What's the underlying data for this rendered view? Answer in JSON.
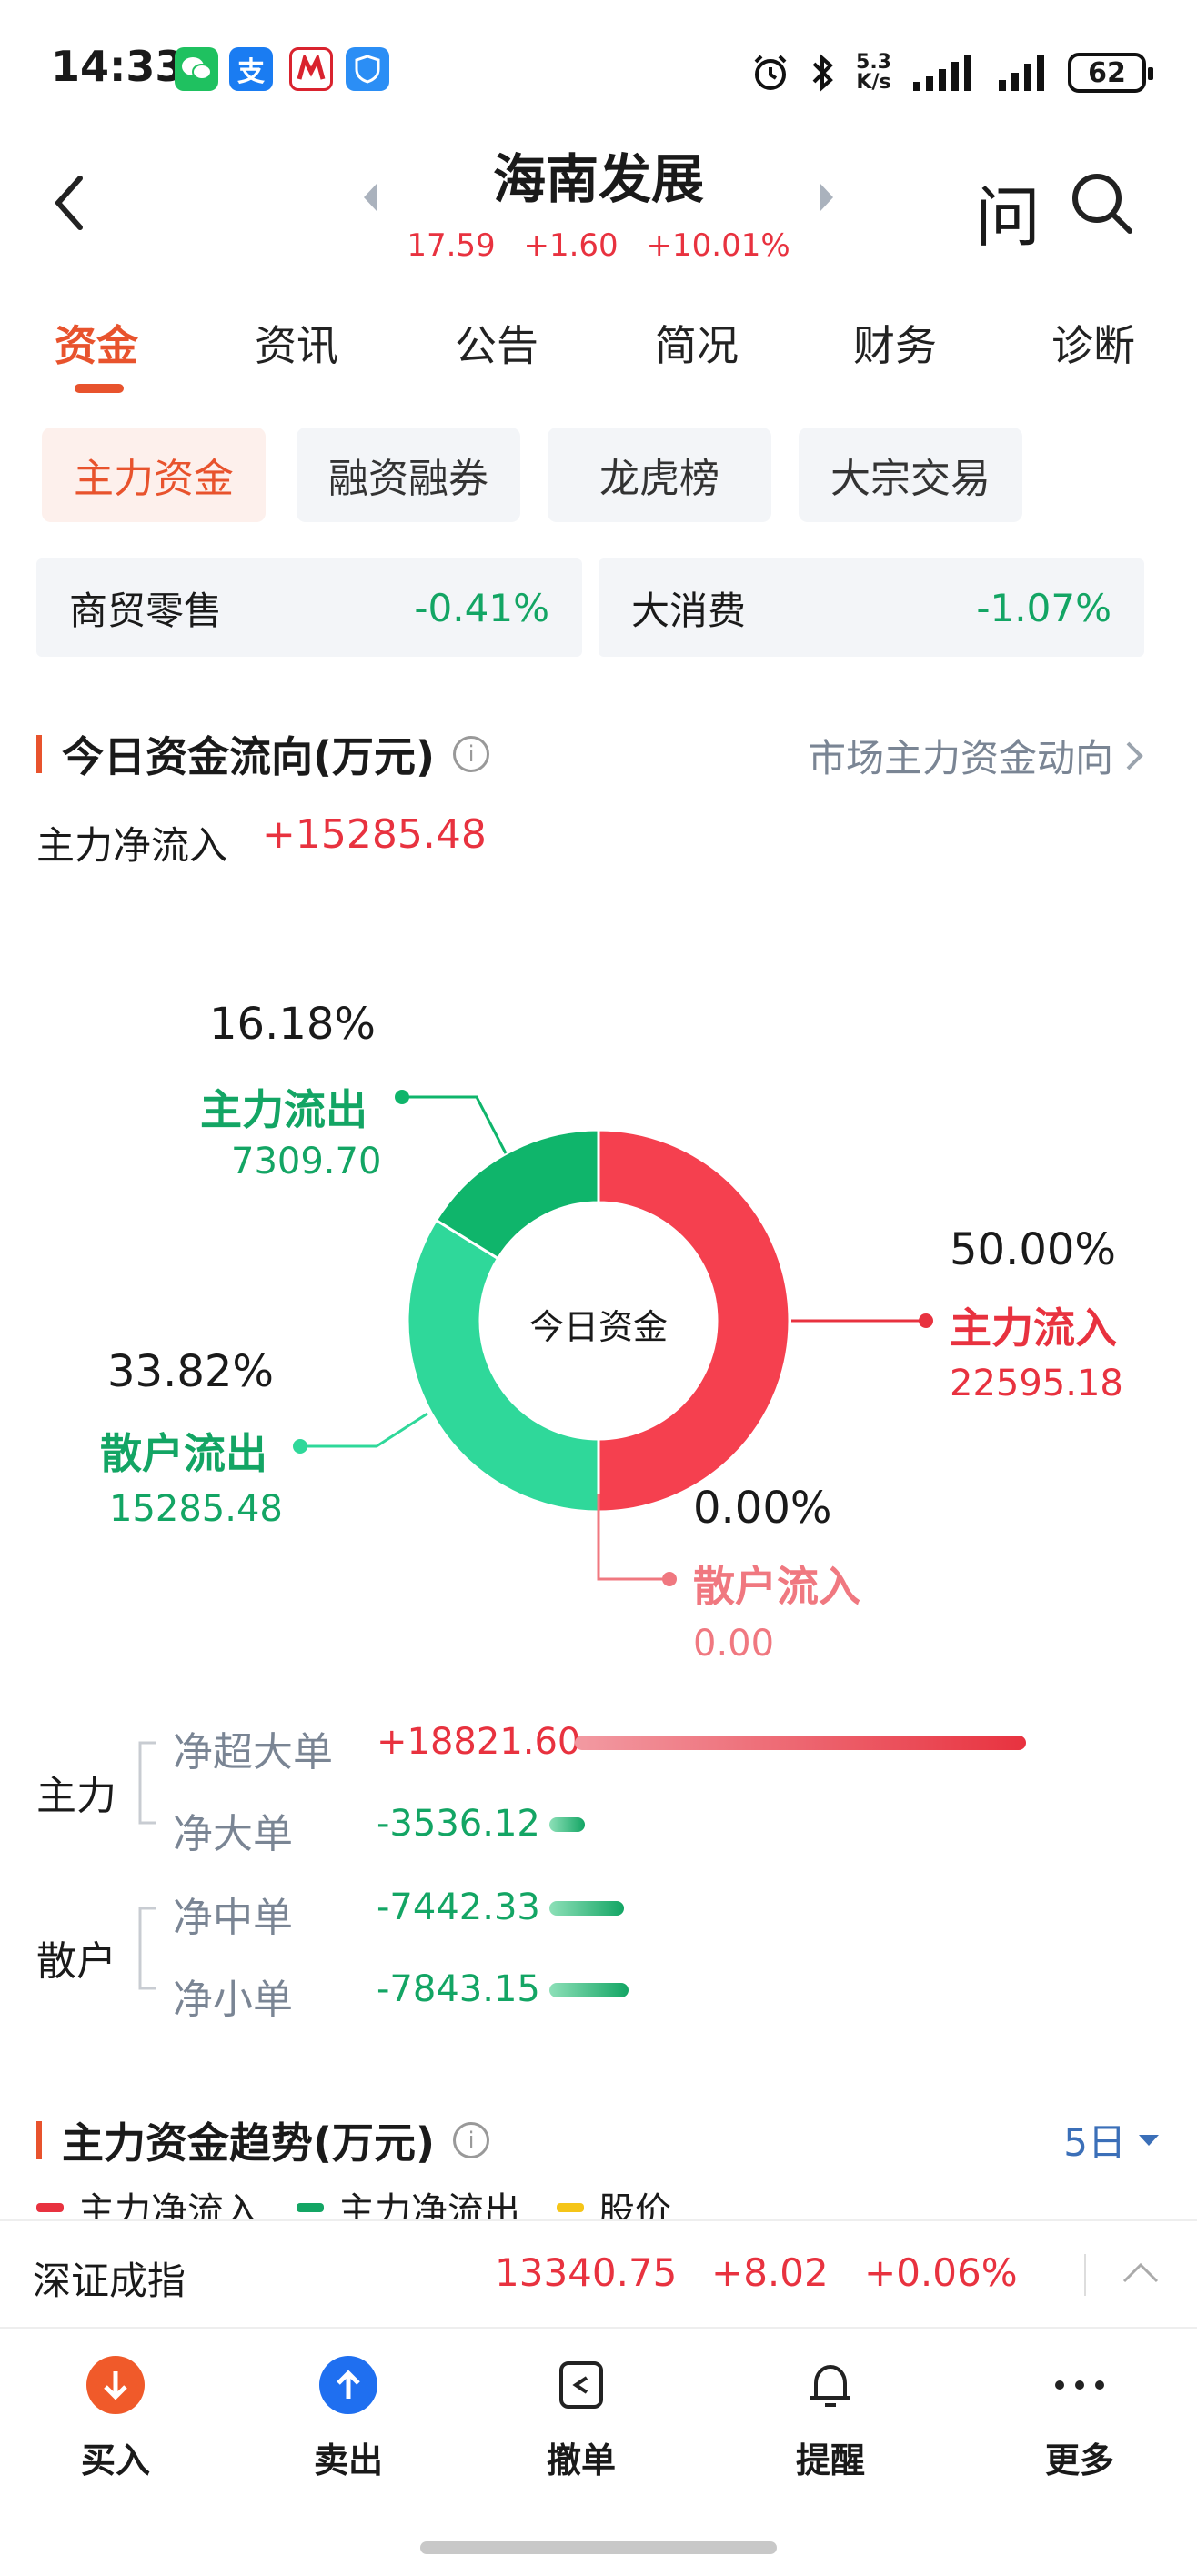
{
  "status": {
    "time": "14:33",
    "net_speed_value": "5.3",
    "net_speed_unit": "K/s",
    "battery": "62",
    "apps": [
      {
        "icon": "wechat-icon",
        "color": "#1fc160"
      },
      {
        "icon": "alipay-icon",
        "color": "#1a7cf2",
        "glyph": "支"
      },
      {
        "icon": "cmb-bank-icon",
        "color": "#d9232e"
      },
      {
        "icon": "shield-app-icon",
        "color": "#2b8ef5"
      }
    ]
  },
  "header": {
    "title": "海南发展",
    "price": "17.59",
    "change": "+1.60",
    "change_pct": "+10.01%",
    "ask_label": "问"
  },
  "tabs": [
    "资金",
    "资讯",
    "公告",
    "简况",
    "财务",
    "诊断"
  ],
  "subtabs": [
    "主力资金",
    "融资融券",
    "龙虎榜",
    "大宗交易"
  ],
  "sectors": [
    {
      "name": "商贸零售",
      "change": "-0.41%"
    },
    {
      "name": "大消费",
      "change": "-1.07%"
    }
  ],
  "flow": {
    "title": "今日资金流向(万元)",
    "market_link": "市场主力资金动向",
    "net_label": "主力净流入",
    "net_value": "+15285.48",
    "center_label": "今日资金"
  },
  "chart_data": {
    "type": "pie",
    "title": "今日资金",
    "slices": [
      {
        "name": "主力流入",
        "pct": "50.00%",
        "value": 22595.18,
        "value_text": "22595.18",
        "color": "#f5404f"
      },
      {
        "name": "散户流入",
        "pct": "0.00%",
        "value": 0.0,
        "value_text": "0.00",
        "color": "#f07880"
      },
      {
        "name": "散户流出",
        "pct": "33.82%",
        "value": 15285.48,
        "value_text": "15285.48",
        "color": "#2fd89a"
      },
      {
        "name": "主力流出",
        "pct": "16.18%",
        "value": 7309.7,
        "value_text": "7309.70",
        "color": "#0fb56b"
      }
    ]
  },
  "breakdown": {
    "groups": [
      {
        "label": "主力",
        "rows": [
          {
            "name": "净超大单",
            "value": "+18821.60",
            "num": 18821.6
          },
          {
            "name": "净大单",
            "value": "-3536.12",
            "num": -3536.12
          }
        ]
      },
      {
        "label": "散户",
        "rows": [
          {
            "name": "净中单",
            "value": "-7442.33",
            "num": -7442.33
          },
          {
            "name": "净小单",
            "value": "-7843.15",
            "num": -7843.15
          }
        ]
      }
    ]
  },
  "trend": {
    "title": "主力资金趋势(万元)",
    "period": "5日",
    "legend": [
      "主力净流入",
      "主力净流出",
      "股价"
    ],
    "legend_colors": [
      "#e8323f",
      "#13a564",
      "#f5c518"
    ]
  },
  "index_bar": {
    "name": "深证成指",
    "value": "13340.75",
    "change": "+8.02",
    "change_pct": "+0.06%"
  },
  "bottom_nav": [
    {
      "label": "买入",
      "icon": "buy-arrow-icon"
    },
    {
      "label": "卖出",
      "icon": "sell-arrow-icon"
    },
    {
      "label": "撤单",
      "icon": "cancel-order-icon"
    },
    {
      "label": "提醒",
      "icon": "bell-icon"
    },
    {
      "label": "更多",
      "icon": "more-dots-icon"
    }
  ]
}
